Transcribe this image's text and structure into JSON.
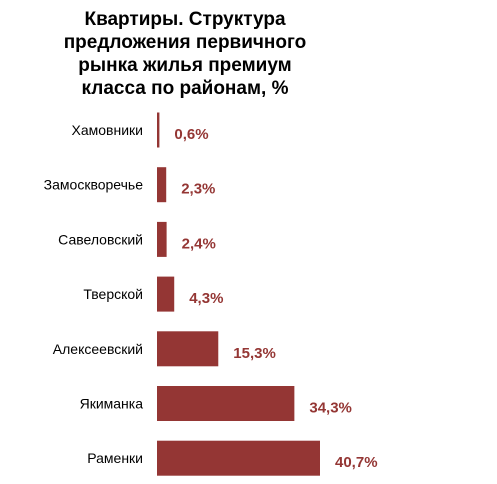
{
  "chart_data": {
    "type": "bar",
    "orientation": "horizontal",
    "title": "Квартиры. Структура\nпредложения первичного\nрынка жилья премиум\nкласса  по районам, %",
    "categories": [
      "Хамовники",
      "Замоскворечье",
      "Савеловский",
      "Тверской",
      "Алексеевский",
      "Якиманка",
      "Раменки"
    ],
    "values": [
      0.6,
      2.3,
      2.4,
      4.3,
      15.3,
      34.3,
      40.7
    ],
    "value_labels": [
      "0,6%",
      "2,3%",
      "2,4%",
      "4,3%",
      "15,3%",
      "34,3%",
      "40,7%"
    ],
    "xlim": [
      0,
      40.7
    ],
    "grid": false,
    "legend": "none",
    "bar_color": "#943634",
    "label_color": "#943634"
  }
}
